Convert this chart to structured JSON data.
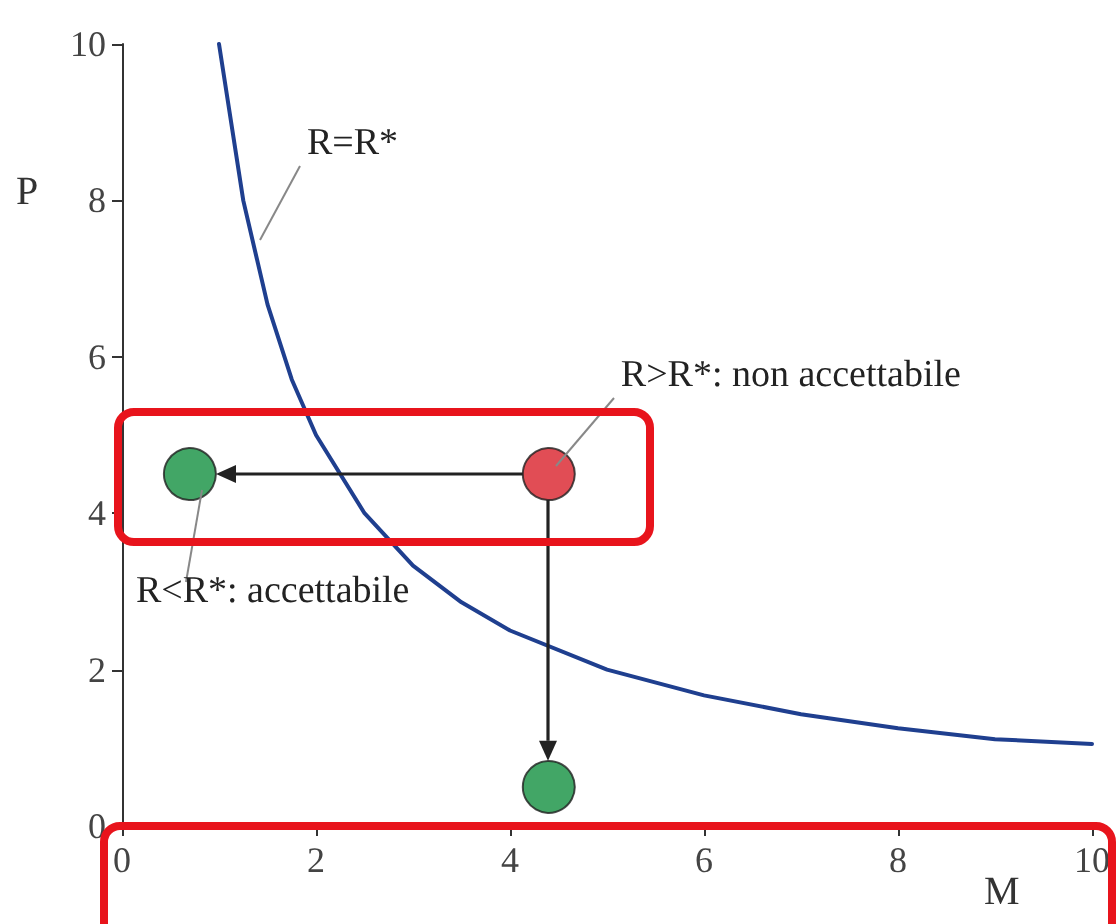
{
  "chart_data": {
    "type": "line",
    "xlabel": "M",
    "ylabel": "P",
    "xlim": [
      0,
      10
    ],
    "ylim": [
      0,
      10
    ],
    "xticks": [
      0,
      2,
      4,
      6,
      8,
      10
    ],
    "yticks": [
      0,
      2,
      4,
      6,
      8,
      10
    ],
    "grid": false,
    "series": [
      {
        "type": "line",
        "color": "#1f3f8f",
        "marker": "none",
        "x": [
          1,
          1.25,
          1.5,
          1.75,
          2,
          2.5,
          3,
          3.5,
          4,
          5,
          6,
          7,
          8,
          9,
          10
        ],
        "values": [
          10,
          8,
          6.67,
          5.71,
          5,
          4,
          3.33,
          2.86,
          2.5,
          2,
          1.67,
          1.43,
          1.25,
          1.11,
          1.05
        ]
      },
      {
        "type": "scatter",
        "color": "#d9202a",
        "marker": "circle",
        "x": [
          4.4
        ],
        "values": [
          4.5
        ]
      },
      {
        "type": "scatter",
        "color": "#139040",
        "marker": "circle",
        "x": [
          0.7,
          4.4
        ],
        "values": [
          4.5,
          0.5
        ]
      }
    ],
    "annotations": [
      {
        "text": "R=R*",
        "x": 1.35,
        "y": 7.4
      },
      {
        "text": "R>R*: non accettabile",
        "x": 4.4,
        "y": 4.5
      },
      {
        "text": "R<R*: accettabile",
        "x": 0.7,
        "y": 4.5
      }
    ]
  }
}
